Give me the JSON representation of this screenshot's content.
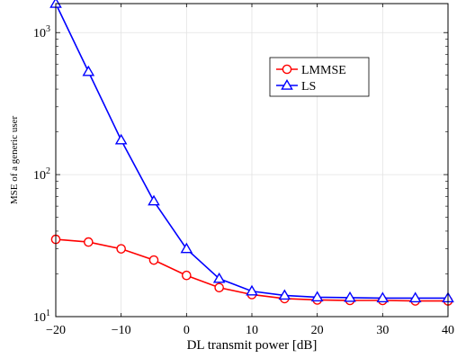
{
  "chart_data": {
    "type": "line",
    "xlabel": "DL transmit power [dB]",
    "ylabel": "MSE of a generic user",
    "xlim": [
      -20,
      40
    ],
    "ylim": [
      10,
      1600
    ],
    "yscale": "log",
    "grid": true,
    "legend_position": "upper-right-center",
    "x_ticks": [
      "−20",
      "−10",
      "0",
      "10",
      "20",
      "30",
      "40"
    ],
    "y_ticks": [
      {
        "base": "10",
        "exp": "1",
        "value": 10
      },
      {
        "base": "10",
        "exp": "2",
        "value": 100
      },
      {
        "base": "10",
        "exp": "3",
        "value": 1000
      }
    ],
    "x": [
      -20,
      -15,
      -10,
      -5,
      0,
      5,
      10,
      15,
      20,
      25,
      30,
      35,
      40
    ],
    "series": [
      {
        "name": "LMMSE",
        "color": "#ff0000",
        "marker": "circle",
        "values": [
          35,
          33.5,
          30,
          25,
          19.5,
          16,
          14.3,
          13.4,
          13.1,
          13.0,
          13.0,
          12.9,
          12.9
        ]
      },
      {
        "name": "LS",
        "color": "#0000ff",
        "marker": "triangle",
        "values": [
          1600,
          530,
          175,
          65,
          30,
          18.5,
          15.1,
          14.1,
          13.7,
          13.6,
          13.5,
          13.5,
          13.5
        ]
      }
    ]
  }
}
